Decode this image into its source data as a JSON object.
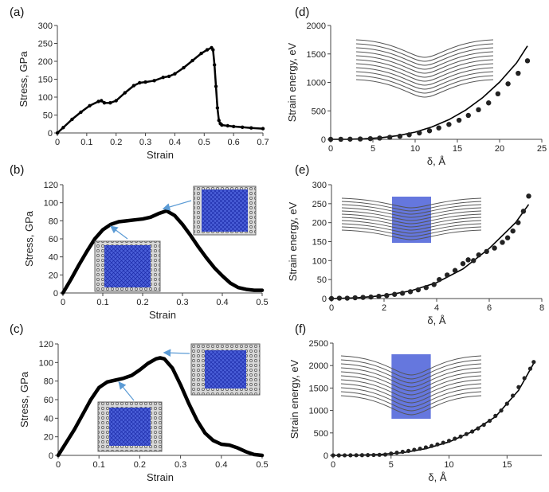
{
  "chart_data": [
    {
      "panel": "(a)",
      "type": "line",
      "xlabel": "Strain",
      "ylabel": "Stress, GPa",
      "xlim": [
        0,
        0.7
      ],
      "ylim": [
        0,
        300
      ],
      "xticks": [
        "0",
        "0.1",
        "0.2",
        "0.3",
        "0.4",
        "0.5",
        "0.6",
        "0.7"
      ],
      "yticks": [
        "0",
        "50",
        "100",
        "150",
        "200",
        "250",
        "300"
      ],
      "series": [
        {
          "x": [
            0,
            0.02,
            0.05,
            0.08,
            0.11,
            0.14,
            0.15,
            0.16,
            0.18,
            0.2,
            0.23,
            0.26,
            0.28,
            0.3,
            0.33,
            0.36,
            0.38,
            0.4,
            0.43,
            0.46,
            0.49,
            0.51,
            0.525,
            0.53,
            0.535,
            0.54,
            0.545,
            0.55,
            0.555,
            0.56,
            0.58,
            0.6,
            0.63,
            0.66,
            0.7
          ],
          "y": [
            0,
            15,
            38,
            58,
            76,
            88,
            90,
            84,
            84,
            90,
            112,
            132,
            140,
            142,
            146,
            155,
            158,
            165,
            182,
            202,
            222,
            232,
            238,
            232,
            190,
            130,
            70,
            35,
            26,
            22,
            20,
            18,
            16,
            14,
            12
          ]
        }
      ]
    },
    {
      "panel": "(b)",
      "type": "line",
      "xlabel": "Strain",
      "ylabel": "Stress, GPa",
      "xlim": [
        0,
        0.5
      ],
      "ylim": [
        0,
        120
      ],
      "xticks": [
        "0",
        "0.1",
        "0.2",
        "0.3",
        "0.4",
        "0.5"
      ],
      "yticks": [
        "0",
        "20",
        "40",
        "60",
        "80",
        "100",
        "120"
      ],
      "series": [
        {
          "x": [
            0,
            0.02,
            0.04,
            0.06,
            0.08,
            0.1,
            0.12,
            0.14,
            0.16,
            0.18,
            0.2,
            0.22,
            0.24,
            0.26,
            0.28,
            0.3,
            0.32,
            0.34,
            0.36,
            0.38,
            0.4,
            0.42,
            0.44,
            0.46,
            0.48,
            0.5
          ],
          "y": [
            0,
            15,
            31,
            46,
            60,
            70,
            76,
            79,
            80,
            81,
            82,
            84,
            88,
            91,
            86,
            76,
            64,
            51,
            39,
            28,
            19,
            11,
            6,
            4,
            3,
            3
          ]
        }
      ]
    },
    {
      "panel": "(c)",
      "type": "line",
      "xlabel": "Strain",
      "ylabel": "Stress, GPa",
      "xlim": [
        0,
        0.5
      ],
      "ylim": [
        0,
        120
      ],
      "xticks": [
        "0",
        "0.1",
        "0.2",
        "0.3",
        "0.4",
        "0.5"
      ],
      "yticks": [
        "0",
        "20",
        "40",
        "60",
        "80",
        "100",
        "120"
      ],
      "series": [
        {
          "x": [
            0,
            0.02,
            0.04,
            0.06,
            0.08,
            0.1,
            0.12,
            0.14,
            0.16,
            0.18,
            0.2,
            0.22,
            0.24,
            0.25,
            0.26,
            0.28,
            0.3,
            0.32,
            0.34,
            0.36,
            0.38,
            0.4,
            0.42,
            0.44,
            0.46,
            0.48,
            0.5
          ],
          "y": [
            0,
            14,
            28,
            44,
            60,
            73,
            79,
            81,
            83,
            86,
            92,
            99,
            104,
            105,
            104,
            94,
            76,
            56,
            38,
            24,
            16,
            12,
            11,
            8,
            4,
            1,
            0
          ]
        }
      ]
    },
    {
      "panel": "(d)",
      "type": "scatter",
      "xlabel": "δ, Å",
      "ylabel": "Strain energy, eV",
      "xlim": [
        0,
        25
      ],
      "ylim": [
        0,
        2000
      ],
      "xticks": [
        "0",
        "5",
        "10",
        "15",
        "20",
        "25"
      ],
      "yticks": [
        "0",
        "500",
        "1000",
        "1500",
        "2000"
      ],
      "points": {
        "x": [
          0,
          1.2,
          2.3,
          3.5,
          4.7,
          5.8,
          7.0,
          8.2,
          9.3,
          10.5,
          11.7,
          12.8,
          14.0,
          15.2,
          16.3,
          17.5,
          18.7,
          19.8,
          21.0,
          22.2,
          23.3
        ],
        "y": [
          0,
          1,
          3,
          6,
          12,
          22,
          36,
          55,
          80,
          112,
          150,
          200,
          262,
          335,
          420,
          520,
          640,
          800,
          975,
          1160,
          1380
        ]
      },
      "fit": {
        "x": [
          0,
          2,
          4,
          6,
          8,
          10,
          12,
          14,
          16,
          18,
          20,
          22,
          23.3
        ],
        "y": [
          0,
          1,
          9,
          29,
          66,
          126,
          218,
          346,
          515,
          733,
          1005,
          1340,
          1640
        ]
      }
    },
    {
      "panel": "(e)",
      "type": "scatter",
      "xlabel": "δ, Å",
      "ylabel": "Strain energy, eV",
      "xlim": [
        0,
        8
      ],
      "ylim": [
        0,
        300
      ],
      "xticks": [
        "0",
        "2",
        "4",
        "6",
        "8"
      ],
      "yticks": [
        "0",
        "50",
        "100",
        "150",
        "200",
        "250",
        "300"
      ],
      "points": {
        "x": [
          0,
          0.3,
          0.6,
          0.9,
          1.2,
          1.5,
          1.8,
          2.1,
          2.4,
          2.7,
          3.0,
          3.3,
          3.6,
          3.9,
          4.1,
          4.4,
          4.7,
          5.0,
          5.2,
          5.4,
          5.6,
          5.9,
          6.2,
          6.5,
          6.7,
          6.9,
          7.1,
          7.3,
          7.5
        ],
        "y": [
          0,
          1,
          1,
          2,
          3,
          4,
          6,
          8,
          11,
          14,
          18,
          23,
          29,
          37,
          50,
          62,
          74,
          92,
          102,
          100,
          115,
          124,
          133,
          148,
          160,
          178,
          200,
          230,
          270
        ]
      },
      "fit": {
        "x": [
          0,
          1,
          2,
          3,
          4,
          5,
          6,
          7,
          7.5
        ],
        "y": [
          0,
          2,
          8,
          20,
          42,
          78,
          132,
          200,
          248
        ]
      }
    },
    {
      "panel": "(f)",
      "type": "scatter",
      "xlabel": "δ, Å",
      "ylabel": "Strain energy, eV",
      "xlim": [
        0,
        18
      ],
      "ylim": [
        0,
        2500
      ],
      "xticks": [
        "0",
        "5",
        "10",
        "15"
      ],
      "yticks": [
        "0",
        "500",
        "1000",
        "1500",
        "2000",
        "2500"
      ],
      "points": {
        "x": [
          0,
          0.5,
          1.0,
          1.5,
          2.0,
          2.5,
          3.0,
          3.5,
          4.0,
          4.5,
          5.0,
          5.5,
          6.0,
          6.5,
          7.0,
          7.5,
          8.0,
          8.5,
          9.0,
          9.5,
          10.0,
          10.5,
          11.0,
          11.5,
          12.0,
          12.5,
          13.0,
          13.5,
          14.0,
          14.5,
          15.0,
          15.5,
          16.0,
          16.5,
          17.0,
          17.3
        ],
        "y": [
          0,
          0,
          1,
          2,
          3,
          4,
          6,
          8,
          12,
          18,
          40,
          60,
          80,
          100,
          125,
          150,
          178,
          210,
          245,
          282,
          325,
          372,
          420,
          475,
          532,
          600,
          680,
          770,
          880,
          1000,
          1150,
          1330,
          1520,
          1720,
          1930,
          2080
        ]
      },
      "fit": {
        "x": [
          0,
          2,
          4,
          6,
          8,
          10,
          12,
          14,
          16,
          17.3
        ],
        "y": [
          0,
          4,
          18,
          60,
          150,
          300,
          530,
          860,
          1450,
          2050
        ]
      }
    }
  ]
}
